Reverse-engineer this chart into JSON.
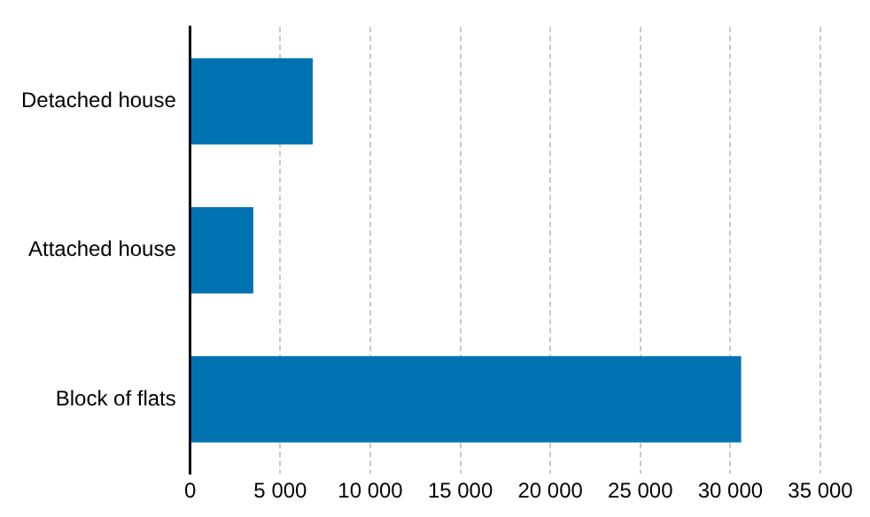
{
  "chart_data": {
    "type": "bar",
    "orientation": "horizontal",
    "categories": [
      "Detached house",
      "Attached house",
      "Block of flats"
    ],
    "values": [
      6800,
      3500,
      30600
    ],
    "color": "#0072b2",
    "xlim": [
      0,
      35000
    ],
    "xticks": [
      {
        "value": 0,
        "label": "0"
      },
      {
        "value": 5000,
        "label": "5 000"
      },
      {
        "value": 10000,
        "label": "10 000"
      },
      {
        "value": 15000,
        "label": "15 000"
      },
      {
        "value": 20000,
        "label": "20 000"
      },
      {
        "value": 25000,
        "label": "25 000"
      },
      {
        "value": 30000,
        "label": "30 000"
      },
      {
        "value": 35000,
        "label": "35 000"
      }
    ],
    "grid": "x",
    "legend": false
  }
}
